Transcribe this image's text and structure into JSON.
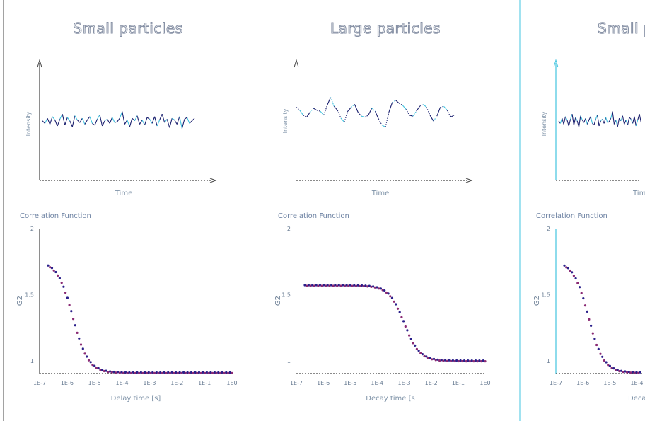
{
  "colors": {
    "axis_dark": "#444444",
    "axis_cyan": "#43c5e0",
    "divider": "#43c5e0",
    "signal_dark": "#1a1f6e",
    "signal_cyan": "#3fc1de",
    "dot_a": "#2a1f8a",
    "dot_b": "#8a2a74",
    "text": "#6e83a3"
  },
  "panels": [
    {
      "title": "Small particles",
      "signal_label_y": "Intensity",
      "signal_label_x": "Time",
      "corr_title": "Correlation Function",
      "corr_ylabel": "G2",
      "corr_xlabel": "Delay time [s]",
      "axis_style": "dark",
      "icon": "arrowhead-icon"
    },
    {
      "title": "Large particles",
      "signal_label_y": "Intensity",
      "signal_label_x": "Time",
      "corr_title": "Correlation Function",
      "corr_ylabel": "G2",
      "corr_xlabel": "Decay time [s",
      "axis_style": "none",
      "icon": "arrowhead-icon"
    },
    {
      "title": "Small pa",
      "signal_label_y": "Intensity",
      "signal_label_x": "Tim",
      "corr_title": "Correlation Function",
      "corr_ylabel": "G2",
      "corr_xlabel": "Deca",
      "axis_style": "cyan",
      "icon": "arrowhead-icon"
    }
  ],
  "chart_data": [
    {
      "type": "line",
      "title": "Small particles",
      "xlabel": "Time",
      "ylabel": "Intensity",
      "shape": "fast-fluctuation",
      "series": [
        {
          "values": [
            0.1,
            -0.2,
            0.4,
            -0.3,
            0.6,
            0.2,
            -0.5,
            0.3,
            0.9,
            -0.4,
            0.5,
            0.1,
            -0.6,
            0.7,
            0.2,
            -0.1,
            0.4,
            -0.3,
            0.2,
            0.6,
            -0.2,
            -0.4,
            0.3,
            0.8,
            -0.5,
            0.1,
            0.3,
            -0.2,
            0.5,
            -0.1,
            0.0,
            0.4,
            1.2,
            -0.3,
            0.2,
            -0.6,
            0.4,
            0.1,
            0.7,
            -0.3,
            0.2,
            -0.4,
            0.5,
            0.3,
            -0.2,
            0.6,
            -0.5,
            0.2,
            0.9,
            -0.1,
            0.3,
            -0.7,
            0.4,
            0.2,
            -0.3,
            0.6,
            -0.8,
            0.3,
            0.5,
            -0.2,
            0.1,
            0.4
          ]
        }
      ]
    },
    {
      "type": "line",
      "title": "Large particles",
      "xlabel": "Time",
      "ylabel": "Intensity",
      "shape": "slow-fluctuation",
      "series": [
        {
          "values": [
            0.6,
            0.3,
            -0.2,
            -0.4,
            0.1,
            0.5,
            0.3,
            0.2,
            -0.2,
            0.8,
            1.6,
            0.7,
            0.3,
            -0.5,
            -0.9,
            0.2,
            0.6,
            0.9,
            0.1,
            -0.3,
            -0.4,
            -0.2,
            0.5,
            0.2,
            -0.6,
            -1.2,
            -1.4,
            0.1,
            1.1,
            1.3,
            1.0,
            0.8,
            0.4,
            -0.2,
            -0.3,
            0.2,
            0.7,
            0.9,
            0.6,
            -0.2,
            -0.8,
            -0.3,
            0.6,
            0.7,
            0.3,
            -0.4,
            -0.2
          ]
        }
      ]
    },
    {
      "type": "scatter",
      "title": "Correlation Function",
      "xlabel": "Delay time [s]",
      "ylabel": "G2",
      "ylim": [
        1,
        2
      ],
      "x": [
        "1E-7",
        "1E-6",
        "1E-5",
        "1E-4",
        "1E-3",
        "1E-2",
        "1E-1",
        "1E0"
      ],
      "shape": "sigmoid-decay",
      "decay_center_log10_s": -5.8,
      "plateau": 1.75,
      "baseline": 1.0
    },
    {
      "type": "scatter",
      "title": "Correlation Function",
      "xlabel": "Decay time [s",
      "ylabel": "G2",
      "ylim": [
        1,
        2
      ],
      "x": [
        "1E-7",
        "1E-6",
        "1E-5",
        "1E-4",
        "1E-3",
        "1E-2",
        "1E-1",
        "1E0"
      ],
      "shape": "sigmoid-decay",
      "decay_center_log10_s": -3.0,
      "plateau": 1.57,
      "baseline": 1.0
    },
    {
      "type": "scatter",
      "title": "Correlation Function",
      "xlabel": "Deca",
      "ylabel": "G2",
      "ylim": [
        1,
        2
      ],
      "x": [
        "1E-7",
        "1E-6",
        "1E-5",
        "1E-4"
      ],
      "shape": "sigmoid-decay",
      "decay_center_log10_s": -5.8,
      "plateau": 1.75,
      "baseline": 1.0
    }
  ],
  "y_ticks": [
    "2",
    "1.5",
    "1"
  ],
  "x_ticks": [
    "1E-7",
    "1E-6",
    "1E-5",
    "1E-4",
    "1E-3",
    "1E-2",
    "1E-1",
    "1E0"
  ]
}
